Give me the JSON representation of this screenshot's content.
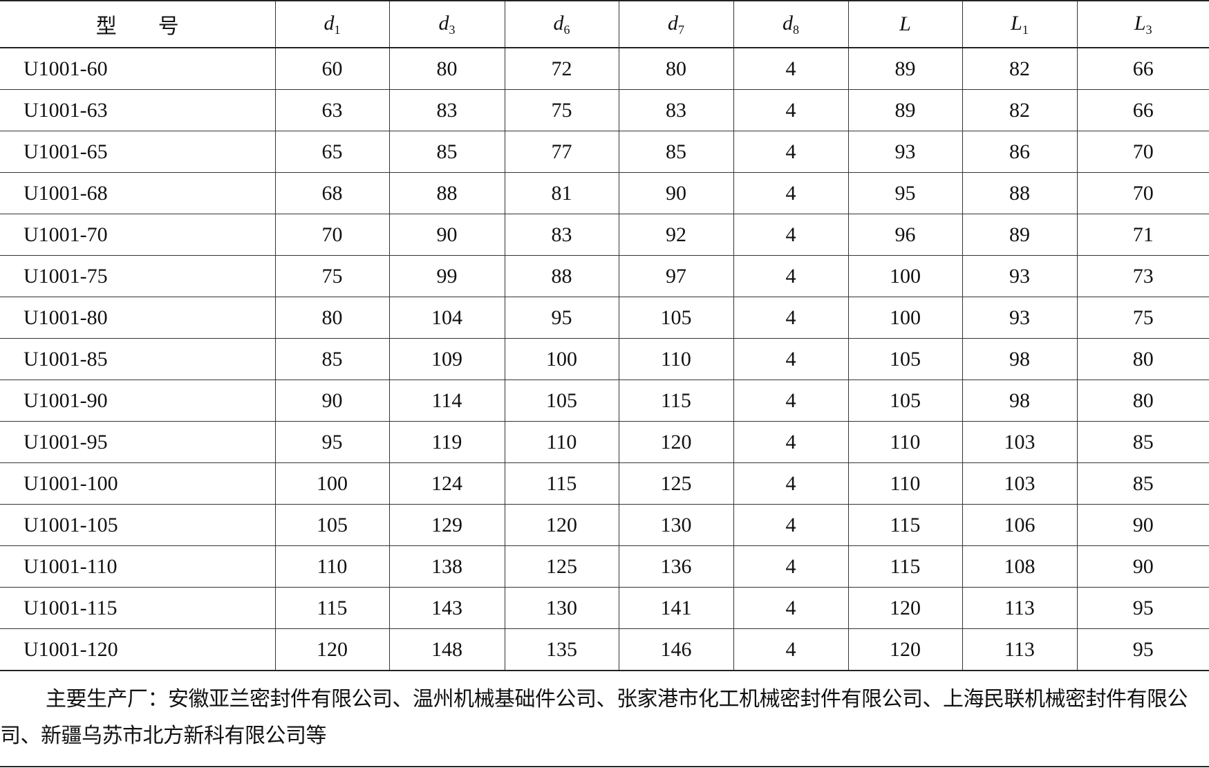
{
  "headers": [
    {
      "base": "型　　号",
      "sub": ""
    },
    {
      "base": "d",
      "sub": "1"
    },
    {
      "base": "d",
      "sub": "3"
    },
    {
      "base": "d",
      "sub": "6"
    },
    {
      "base": "d",
      "sub": "7"
    },
    {
      "base": "d",
      "sub": "8"
    },
    {
      "base": "L",
      "sub": ""
    },
    {
      "base": "L",
      "sub": "1"
    },
    {
      "base": "L",
      "sub": "3"
    }
  ],
  "rows": [
    [
      "U1001-60",
      "60",
      "80",
      "72",
      "80",
      "4",
      "89",
      "82",
      "66"
    ],
    [
      "U1001-63",
      "63",
      "83",
      "75",
      "83",
      "4",
      "89",
      "82",
      "66"
    ],
    [
      "U1001-65",
      "65",
      "85",
      "77",
      "85",
      "4",
      "93",
      "86",
      "70"
    ],
    [
      "U1001-68",
      "68",
      "88",
      "81",
      "90",
      "4",
      "95",
      "88",
      "70"
    ],
    [
      "U1001-70",
      "70",
      "90",
      "83",
      "92",
      "4",
      "96",
      "89",
      "71"
    ],
    [
      "U1001-75",
      "75",
      "99",
      "88",
      "97",
      "4",
      "100",
      "93",
      "73"
    ],
    [
      "U1001-80",
      "80",
      "104",
      "95",
      "105",
      "4",
      "100",
      "93",
      "75"
    ],
    [
      "U1001-85",
      "85",
      "109",
      "100",
      "110",
      "4",
      "105",
      "98",
      "80"
    ],
    [
      "U1001-90",
      "90",
      "114",
      "105",
      "115",
      "4",
      "105",
      "98",
      "80"
    ],
    [
      "U1001-95",
      "95",
      "119",
      "110",
      "120",
      "4",
      "110",
      "103",
      "85"
    ],
    [
      "U1001-100",
      "100",
      "124",
      "115",
      "125",
      "4",
      "110",
      "103",
      "85"
    ],
    [
      "U1001-105",
      "105",
      "129",
      "120",
      "130",
      "4",
      "115",
      "106",
      "90"
    ],
    [
      "U1001-110",
      "110",
      "138",
      "125",
      "136",
      "4",
      "115",
      "108",
      "90"
    ],
    [
      "U1001-115",
      "115",
      "143",
      "130",
      "141",
      "4",
      "120",
      "113",
      "95"
    ],
    [
      "U1001-120",
      "120",
      "148",
      "135",
      "146",
      "4",
      "120",
      "113",
      "95"
    ]
  ],
  "note": "主要生产厂：安徽亚兰密封件有限公司、温州机械基础件公司、张家港市化工机械密封件有限公司、上海民联机械密封件有限公司、新疆乌苏市北方新科有限公司等"
}
